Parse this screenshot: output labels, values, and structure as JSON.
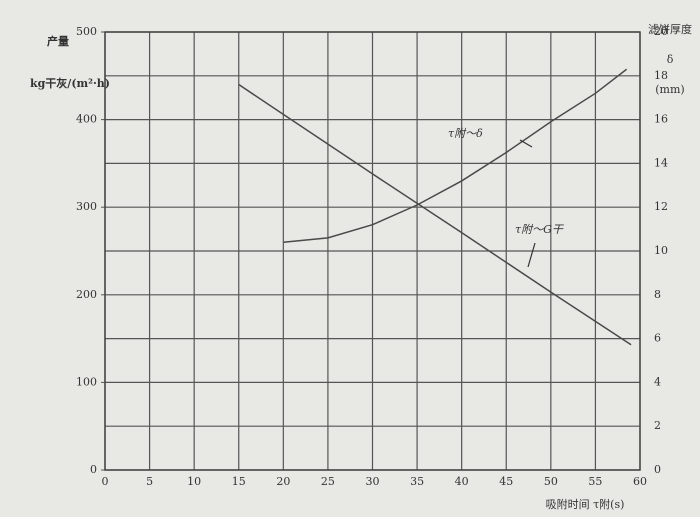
{
  "chart_data": {
    "type": "line",
    "y_label_lines": [
      "产量",
      "kg干灰/(m²·h)"
    ],
    "y2_label_lines": [
      "滤饼厚度",
      "δ",
      "(mm)"
    ],
    "x_label": "吸附时间 τ附(s)",
    "annotations": [
      "τ附～δ",
      "τ附～G干"
    ],
    "xlim": [
      0,
      60
    ],
    "xticks": [
      0,
      5,
      10,
      15,
      20,
      25,
      30,
      35,
      40,
      45,
      50,
      55,
      60
    ],
    "ylim": [
      0,
      500
    ],
    "yticks": [
      0,
      100,
      200,
      300,
      400,
      500
    ],
    "y2lim": [
      0,
      20
    ],
    "y2ticks": [
      0,
      2,
      4,
      6,
      8,
      10,
      12,
      14,
      16,
      18,
      20
    ],
    "grid": true,
    "series": [
      {
        "name": "τ附～G干",
        "color": "#4a4a4a",
        "x": [
          15,
          20,
          30,
          40,
          50,
          59
        ],
        "values": [
          440,
          406,
          338,
          271,
          203,
          143
        ]
      },
      {
        "name": "τ附～δ",
        "color": "#4a4a4a",
        "axis": "y2",
        "x": [
          20,
          25,
          30,
          35,
          40,
          45,
          50,
          55,
          58.5
        ],
        "values": [
          10.4,
          10.6,
          11.2,
          12.1,
          13.2,
          14.5,
          15.9,
          17.2,
          18.3
        ]
      }
    ]
  }
}
